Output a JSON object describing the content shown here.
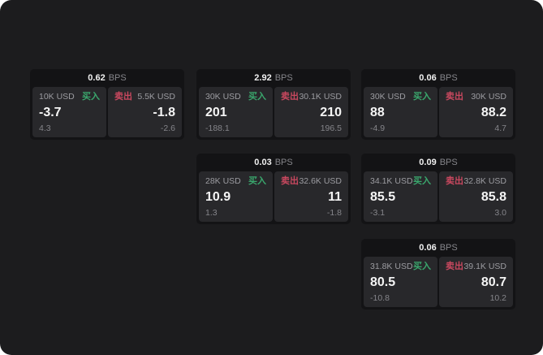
{
  "labels": {
    "bps_unit": "BPS",
    "buy_side": "买入",
    "sell_side": "卖出"
  },
  "colors": {
    "background": "#1c1c1e",
    "card": "#131315",
    "panel": "#28282b",
    "buy_green": "#3aa76d",
    "sell_red": "#c9485f"
  },
  "cards": [
    {
      "bps": "0.62",
      "buy": {
        "amount": "10K USD",
        "price": "-3.7",
        "change": "4.3"
      },
      "sell": {
        "amount": "5.5K USD",
        "price": "-1.8",
        "change": "-2.6"
      }
    },
    {
      "bps": "2.92",
      "buy": {
        "amount": "30K USD",
        "price": "201",
        "change": "-188.1"
      },
      "sell": {
        "amount": "30.1K USD",
        "price": "210",
        "change": "196.5"
      }
    },
    {
      "bps": "0.06",
      "buy": {
        "amount": "30K USD",
        "price": "88",
        "change": "-4.9"
      },
      "sell": {
        "amount": "30K USD",
        "price": "88.2",
        "change": "4.7"
      }
    },
    {
      "bps": "0.03",
      "buy": {
        "amount": "28K USD",
        "price": "10.9",
        "change": "1.3"
      },
      "sell": {
        "amount": "32.6K USD",
        "price": "11",
        "change": "-1.8"
      }
    },
    {
      "bps": "0.09",
      "buy": {
        "amount": "34.1K USD",
        "price": "85.5",
        "change": "-3.1"
      },
      "sell": {
        "amount": "32.8K USD",
        "price": "85.8",
        "change": "3.0"
      }
    },
    {
      "bps": "0.06",
      "buy": {
        "amount": "31.8K USD",
        "price": "80.5",
        "change": "-10.8"
      },
      "sell": {
        "amount": "39.1K USD",
        "price": "80.7",
        "change": "10.2"
      }
    }
  ]
}
